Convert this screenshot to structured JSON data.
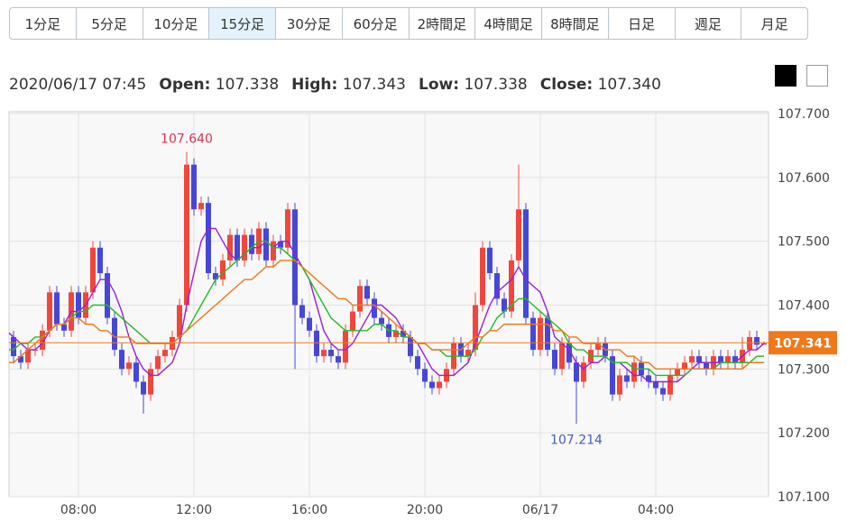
{
  "tabs": [
    "1分足",
    "5分足",
    "10分足",
    "15分足",
    "30分足",
    "60分足",
    "2時間足",
    "4時間足",
    "8時間足",
    "日足",
    "週足",
    "月足"
  ],
  "active_tab": 3,
  "ohlc_header": {
    "datetime": "2020/06/17 07:45",
    "fields": [
      {
        "label": "Open:",
        "value": "107.338"
      },
      {
        "label": "High:",
        "value": "107.343"
      },
      {
        "label": "Low:",
        "value": "107.338"
      },
      {
        "label": "Close:",
        "value": "107.340"
      }
    ]
  },
  "chart_data": {
    "type": "candlestick",
    "categories": [
      null,
      null,
      null,
      null,
      null,
      null,
      null,
      null,
      null,
      null,
      "08:00",
      null,
      null,
      null,
      null,
      null,
      null,
      null,
      null,
      null,
      null,
      null,
      null,
      null,
      null,
      null,
      "12:00",
      null,
      null,
      null,
      null,
      null,
      null,
      null,
      null,
      null,
      null,
      null,
      null,
      null,
      null,
      null,
      "16:00",
      null,
      null,
      null,
      null,
      null,
      null,
      null,
      null,
      null,
      null,
      null,
      null,
      null,
      null,
      null,
      "20:00",
      null,
      null,
      null,
      null,
      null,
      null,
      null,
      null,
      null,
      null,
      null,
      null,
      null,
      null,
      null,
      "06/17",
      null,
      null,
      null,
      null,
      null,
      null,
      null,
      null,
      null,
      null,
      null,
      null,
      null,
      null,
      null,
      "04:00",
      null,
      null,
      null,
      null,
      null,
      null,
      null,
      null,
      null,
      null,
      null,
      null,
      null,
      null,
      null
    ],
    "open": [
      107.39,
      107.35,
      107.32,
      107.31,
      107.33,
      107.33,
      107.36,
      107.42,
      107.37,
      107.36,
      107.42,
      107.38,
      107.42,
      107.49,
      107.45,
      107.38,
      107.33,
      107.3,
      107.31,
      107.28,
      107.26,
      107.3,
      107.32,
      107.33,
      107.35,
      107.4,
      107.62,
      107.55,
      107.56,
      107.45,
      107.44,
      107.47,
      107.51,
      107.47,
      107.51,
      107.48,
      107.52,
      107.47,
      107.5,
      107.49,
      107.55,
      107.4,
      107.38,
      107.36,
      107.32,
      107.33,
      107.32,
      107.31,
      107.36,
      107.39,
      107.43,
      107.41,
      107.38,
      107.37,
      107.35,
      107.36,
      107.35,
      107.32,
      107.3,
      107.28,
      107.27,
      107.28,
      107.3,
      107.34,
      107.32,
      107.33,
      107.4,
      107.49,
      107.45,
      107.41,
      107.39,
      107.47,
      107.55,
      107.38,
      107.33,
      107.38,
      107.33,
      107.3,
      107.34,
      107.31,
      107.28,
      107.31,
      107.33,
      107.34,
      107.32,
      107.26,
      107.29,
      107.28,
      107.31,
      107.29,
      107.28,
      107.27,
      107.26,
      107.29,
      107.3,
      107.31,
      107.32,
      107.31,
      107.3,
      107.32,
      107.31,
      107.32,
      107.31,
      107.33,
      107.35,
      107.338
    ],
    "high": [
      107.4,
      107.36,
      107.33,
      107.34,
      107.34,
      107.37,
      107.43,
      107.43,
      107.38,
      107.43,
      107.43,
      107.43,
      107.5,
      107.5,
      107.46,
      107.39,
      107.34,
      107.32,
      107.32,
      107.29,
      107.31,
      107.33,
      107.34,
      107.36,
      107.41,
      107.64,
      107.63,
      107.57,
      107.57,
      107.46,
      107.48,
      107.52,
      107.52,
      107.52,
      107.52,
      107.53,
      107.53,
      107.51,
      107.51,
      107.56,
      107.56,
      107.41,
      107.39,
      107.37,
      107.34,
      107.34,
      107.33,
      107.37,
      107.4,
      107.44,
      107.44,
      107.42,
      107.39,
      107.38,
      107.37,
      107.37,
      107.36,
      107.33,
      107.31,
      107.29,
      107.29,
      107.31,
      107.35,
      107.35,
      107.34,
      107.42,
      107.5,
      107.5,
      107.46,
      107.42,
      107.48,
      107.62,
      107.56,
      107.39,
      107.39,
      107.39,
      107.34,
      107.35,
      107.35,
      107.32,
      107.32,
      107.34,
      107.35,
      107.35,
      107.33,
      107.3,
      107.3,
      107.32,
      107.32,
      107.3,
      107.29,
      107.28,
      107.3,
      107.31,
      107.32,
      107.33,
      107.33,
      107.32,
      107.33,
      107.33,
      107.33,
      107.33,
      107.35,
      107.36,
      107.36,
      107.343
    ],
    "low": [
      107.34,
      107.31,
      107.3,
      107.3,
      107.32,
      107.32,
      107.35,
      107.36,
      107.35,
      107.35,
      107.37,
      107.37,
      107.41,
      107.44,
      107.37,
      107.32,
      107.29,
      107.29,
      107.27,
      107.23,
      107.25,
      107.29,
      107.31,
      107.32,
      107.34,
      107.39,
      107.54,
      107.54,
      107.44,
      107.43,
      107.43,
      107.46,
      107.46,
      107.46,
      107.47,
      107.47,
      107.46,
      107.46,
      107.48,
      107.48,
      107.3,
      107.37,
      107.35,
      107.31,
      107.31,
      107.31,
      107.3,
      107.3,
      107.35,
      107.38,
      107.4,
      107.37,
      107.36,
      107.34,
      107.34,
      107.34,
      107.31,
      107.29,
      107.27,
      107.26,
      107.26,
      107.27,
      107.29,
      107.31,
      107.31,
      107.32,
      107.39,
      107.44,
      107.4,
      107.38,
      107.38,
      107.46,
      107.37,
      107.32,
      107.32,
      107.32,
      107.29,
      107.29,
      107.3,
      107.214,
      107.27,
      107.3,
      107.32,
      107.31,
      107.25,
      107.25,
      107.27,
      107.27,
      107.28,
      107.27,
      107.26,
      107.25,
      107.25,
      107.28,
      107.29,
      107.3,
      107.3,
      107.29,
      107.29,
      107.3,
      107.3,
      107.3,
      107.3,
      107.32,
      107.33,
      107.338
    ],
    "close": [
      107.35,
      107.32,
      107.31,
      107.33,
      107.33,
      107.36,
      107.42,
      107.37,
      107.36,
      107.42,
      107.38,
      107.42,
      107.49,
      107.45,
      107.38,
      107.33,
      107.3,
      107.31,
      107.28,
      107.26,
      107.3,
      107.32,
      107.33,
      107.35,
      107.4,
      107.62,
      107.55,
      107.56,
      107.45,
      107.44,
      107.47,
      107.51,
      107.47,
      107.51,
      107.48,
      107.52,
      107.47,
      107.5,
      107.49,
      107.55,
      107.4,
      107.38,
      107.36,
      107.32,
      107.33,
      107.32,
      107.31,
      107.36,
      107.39,
      107.43,
      107.41,
      107.38,
      107.37,
      107.35,
      107.36,
      107.35,
      107.32,
      107.3,
      107.28,
      107.27,
      107.28,
      107.3,
      107.34,
      107.32,
      107.33,
      107.4,
      107.49,
      107.45,
      107.41,
      107.39,
      107.47,
      107.55,
      107.38,
      107.33,
      107.38,
      107.33,
      107.3,
      107.34,
      107.31,
      107.28,
      107.31,
      107.33,
      107.34,
      107.32,
      107.26,
      107.29,
      107.28,
      107.31,
      107.29,
      107.28,
      107.27,
      107.26,
      107.29,
      107.3,
      107.31,
      107.32,
      107.31,
      107.3,
      107.32,
      107.31,
      107.32,
      107.31,
      107.33,
      107.35,
      107.338,
      107.34
    ],
    "up_color": "#f0463c",
    "down_color": "#4747d6",
    "series": [
      {
        "color": "#9a1ee0",
        "values": [
          107.36,
          107.35,
          107.34,
          107.33,
          107.33,
          107.34,
          107.36,
          107.37,
          107.37,
          107.39,
          107.39,
          107.4,
          107.42,
          107.44,
          107.44,
          107.42,
          107.39,
          107.35,
          107.32,
          107.3,
          107.29,
          107.29,
          107.3,
          107.31,
          107.34,
          107.4,
          107.45,
          107.5,
          107.52,
          107.52,
          107.5,
          107.48,
          107.47,
          107.48,
          107.49,
          107.49,
          107.5,
          107.49,
          107.5,
          107.5,
          107.48,
          107.46,
          107.44,
          107.4,
          107.36,
          107.34,
          107.33,
          107.33,
          107.34,
          107.36,
          107.38,
          107.4,
          107.4,
          107.39,
          107.38,
          107.36,
          107.35,
          107.34,
          107.32,
          107.3,
          107.29,
          107.29,
          107.29,
          107.3,
          107.31,
          107.34,
          107.37,
          107.4,
          107.42,
          107.43,
          107.44,
          107.46,
          107.44,
          107.43,
          107.42,
          107.39,
          107.35,
          107.34,
          107.33,
          107.31,
          107.3,
          107.31,
          107.31,
          107.32,
          107.31,
          107.31,
          107.3,
          107.29,
          107.29,
          107.28,
          107.28,
          107.28,
          107.28,
          107.28,
          107.29,
          107.3,
          107.31,
          107.31,
          107.31,
          107.31,
          107.31,
          107.31,
          107.32,
          107.33,
          107.33,
          107.34
        ]
      },
      {
        "color": "#22bb22",
        "values": [
          107.33,
          107.33,
          107.34,
          107.34,
          107.35,
          107.35,
          107.36,
          107.37,
          107.37,
          107.38,
          107.39,
          107.39,
          107.4,
          107.4,
          107.4,
          107.39,
          107.38,
          107.37,
          107.36,
          107.35,
          107.34,
          107.34,
          107.34,
          107.34,
          107.35,
          107.36,
          107.38,
          107.4,
          107.42,
          107.44,
          107.45,
          107.46,
          107.47,
          107.48,
          107.49,
          107.5,
          107.5,
          107.49,
          107.49,
          107.48,
          107.47,
          107.46,
          107.44,
          107.42,
          107.4,
          107.38,
          107.37,
          107.36,
          107.36,
          107.36,
          107.36,
          107.37,
          107.37,
          107.36,
          107.36,
          107.35,
          107.35,
          107.34,
          107.34,
          107.33,
          107.33,
          107.32,
          107.32,
          107.32,
          107.32,
          107.33,
          107.35,
          107.36,
          107.38,
          107.39,
          107.4,
          107.41,
          107.41,
          107.4,
          107.39,
          107.38,
          107.37,
          107.36,
          107.34,
          107.33,
          107.33,
          107.32,
          107.32,
          107.32,
          107.31,
          107.31,
          107.31,
          107.3,
          107.3,
          107.3,
          107.29,
          107.29,
          107.29,
          107.29,
          107.29,
          107.3,
          107.3,
          107.3,
          107.3,
          107.31,
          107.31,
          107.31,
          107.31,
          107.31,
          107.32,
          107.32
        ]
      },
      {
        "color": "#f07818",
        "values": [
          107.31,
          107.31,
          107.32,
          107.33,
          107.34,
          107.35,
          107.36,
          107.37,
          107.37,
          107.38,
          107.38,
          107.37,
          107.37,
          107.36,
          107.36,
          107.35,
          107.35,
          107.35,
          107.34,
          107.34,
          107.34,
          107.34,
          107.34,
          107.34,
          107.35,
          107.36,
          107.37,
          107.38,
          107.39,
          107.4,
          107.41,
          107.42,
          107.43,
          107.44,
          107.44,
          107.45,
          107.46,
          107.46,
          107.47,
          107.47,
          107.47,
          107.46,
          107.45,
          107.44,
          107.43,
          107.42,
          107.41,
          107.41,
          107.4,
          107.4,
          107.4,
          107.4,
          107.39,
          107.38,
          107.37,
          107.36,
          107.35,
          107.34,
          107.34,
          107.33,
          107.33,
          107.33,
          107.33,
          107.33,
          107.34,
          107.35,
          107.35,
          107.36,
          107.36,
          107.37,
          107.37,
          107.37,
          107.37,
          107.37,
          107.37,
          107.37,
          107.36,
          107.36,
          107.35,
          107.35,
          107.34,
          107.34,
          107.34,
          107.33,
          107.33,
          107.33,
          107.32,
          107.32,
          107.31,
          107.31,
          107.3,
          107.3,
          107.3,
          107.3,
          107.3,
          107.3,
          107.3,
          107.3,
          107.3,
          107.3,
          107.3,
          107.3,
          107.3,
          107.31,
          107.31,
          107.31
        ]
      }
    ],
    "ylim": [
      107.1,
      107.7
    ],
    "yticks": [
      {
        "value": 107.1,
        "label": "107.100"
      },
      {
        "value": 107.2,
        "label": "107.200"
      },
      {
        "value": 107.3,
        "label": "107.300"
      },
      {
        "value": 107.4,
        "label": "107.400"
      },
      {
        "value": 107.5,
        "label": "107.500"
      },
      {
        "value": 107.6,
        "label": "107.600"
      },
      {
        "value": 107.7,
        "label": "107.700"
      }
    ],
    "grid": true,
    "last_price": {
      "value": 107.341,
      "label": "107.341",
      "color": "#f07818"
    },
    "high_label": "107.640",
    "high_label_color": "#e03050",
    "low_label": "107.214",
    "low_label_color": "#4060b0"
  }
}
